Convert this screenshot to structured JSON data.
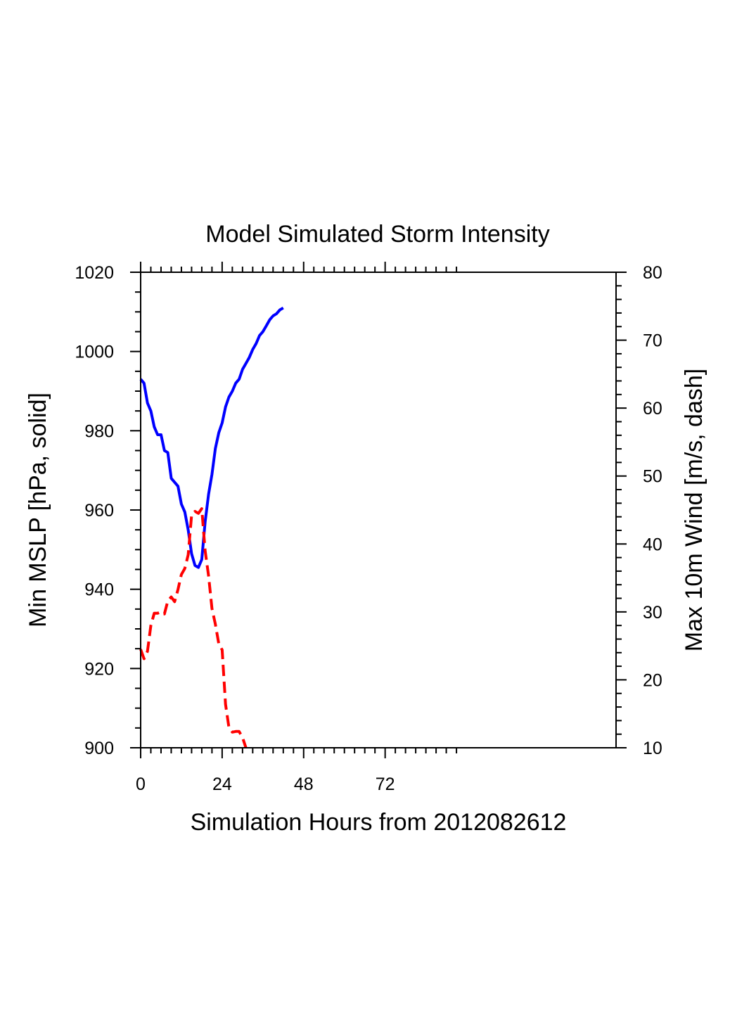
{
  "chart_data": {
    "type": "line",
    "title": "Model Simulated Storm Intensity",
    "xlabel": "Simulation Hours from 2012082612",
    "ylabel_left": "Min MSLP  [hPa, solid]",
    "ylabel_right": "Max 10m Wind  [m/s, dash]",
    "xlim": [
      0,
      140
    ],
    "ylim_left": [
      900,
      1020
    ],
    "ylim_right": [
      10,
      80
    ],
    "x_ticks": [
      0,
      24,
      48,
      72
    ],
    "y_ticks_left": [
      900,
      920,
      940,
      960,
      980,
      1000,
      1020
    ],
    "y_ticks_right": [
      10,
      20,
      30,
      40,
      50,
      60,
      70,
      80
    ],
    "grid": false,
    "colors": {
      "mslp": "#0000ff",
      "wind": "#ff0000"
    },
    "series": [
      {
        "axis": "left",
        "style": "solid",
        "x": [
          0,
          1,
          2,
          3,
          4,
          5,
          6,
          7,
          8,
          9,
          10,
          11,
          12,
          13,
          14,
          15,
          16,
          17,
          18,
          19,
          20,
          21,
          22,
          23,
          24,
          25,
          26,
          27,
          28,
          29,
          30,
          31,
          32,
          33,
          34,
          35,
          36,
          37,
          38,
          39,
          40,
          41,
          42
        ],
        "values": [
          993,
          992,
          987,
          985,
          981,
          979,
          979,
          975,
          974.5,
          968,
          967,
          966,
          961.5,
          959.5,
          955,
          949,
          946,
          945.5,
          947.5,
          957,
          964,
          969,
          975.5,
          979.5,
          982,
          986,
          988.5,
          990,
          992,
          993,
          995.5,
          997,
          998.5,
          1000.5,
          1002,
          1004,
          1005,
          1006.5,
          1008,
          1009,
          1009.5,
          1010.5,
          1011
        ]
      },
      {
        "axis": "right",
        "style": "dash",
        "x": [
          0,
          1,
          2,
          3,
          4,
          5,
          6,
          7,
          8,
          9,
          10,
          11,
          12,
          13,
          14,
          15,
          16,
          17,
          18,
          19,
          20,
          21,
          22,
          23,
          24,
          25,
          26,
          27,
          28,
          29,
          30,
          31
        ],
        "values": [
          24.5,
          23.1,
          24.2,
          28,
          29.8,
          29.8,
          30,
          29.7,
          31.6,
          32.2,
          31.5,
          33.3,
          35.5,
          36.4,
          38.4,
          44.2,
          44.8,
          44.5,
          45.2,
          39,
          35.3,
          30.5,
          28.2,
          25.3,
          24.4,
          16.4,
          13,
          12.3,
          12.4,
          12.4,
          11.5,
          10
        ]
      }
    ]
  }
}
